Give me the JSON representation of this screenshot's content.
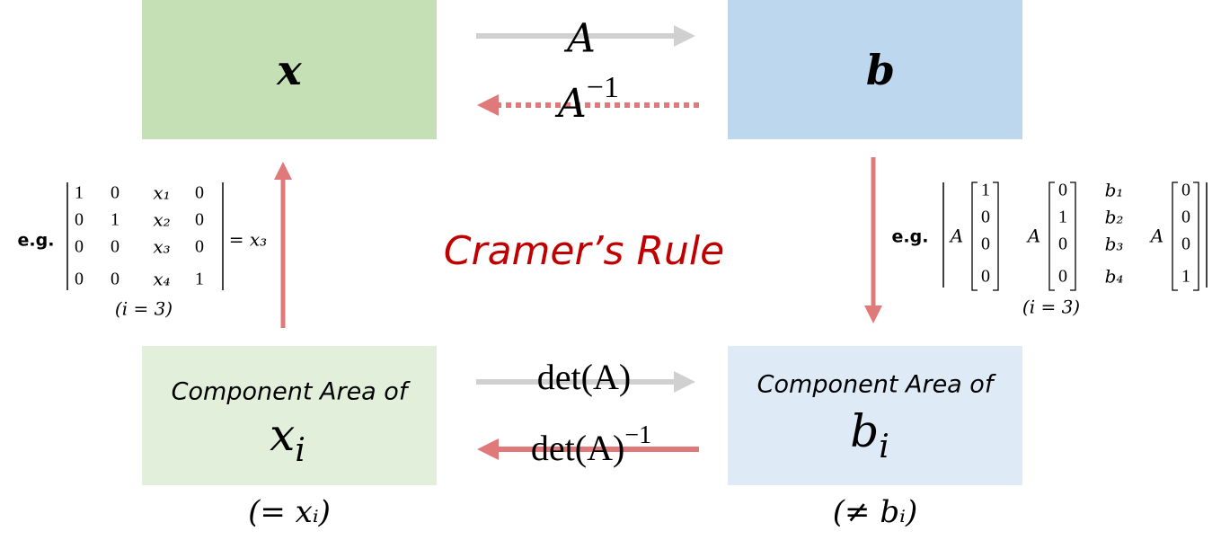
{
  "top_left": {
    "label": "x"
  },
  "top_right": {
    "label": "b"
  },
  "arrow_forward": {
    "label": "A"
  },
  "arrow_inverse": {
    "base": "A",
    "sup": "−1"
  },
  "title": "Cramer’s Rule",
  "bottom_left": {
    "caption": "Component Area of",
    "base": "x",
    "sub": "i",
    "note": "(= xᵢ)"
  },
  "bottom_right": {
    "caption": "Component Area of",
    "base": "b",
    "sub": "i",
    "note": "(≠ bᵢ)"
  },
  "det_forward": {
    "label": "det(A)"
  },
  "det_inverse": {
    "base": "det(A)",
    "sup": "−1"
  },
  "left_example": {
    "prefix": "e.g.",
    "rows": [
      [
        "1",
        "0",
        "x₁",
        "0"
      ],
      [
        "0",
        "1",
        "x₂",
        "0"
      ],
      [
        "0",
        "0",
        "x₃",
        "0"
      ],
      [
        "0",
        "0",
        "x₄",
        "1"
      ]
    ],
    "result": "= x₃",
    "note": "(i = 3)"
  },
  "right_example": {
    "prefix": "e.g.",
    "columns": [
      {
        "label": "A",
        "entries": [
          "1",
          "0",
          "0",
          "0"
        ]
      },
      {
        "label": "A",
        "entries": [
          "0",
          "1",
          "0",
          "0"
        ]
      },
      {
        "entries": [
          "b₁",
          "b₂",
          "b₃",
          "b₄"
        ]
      },
      {
        "label": "A",
        "entries": [
          "0",
          "0",
          "0",
          "1"
        ]
      }
    ],
    "note": "(i = 3)"
  }
}
